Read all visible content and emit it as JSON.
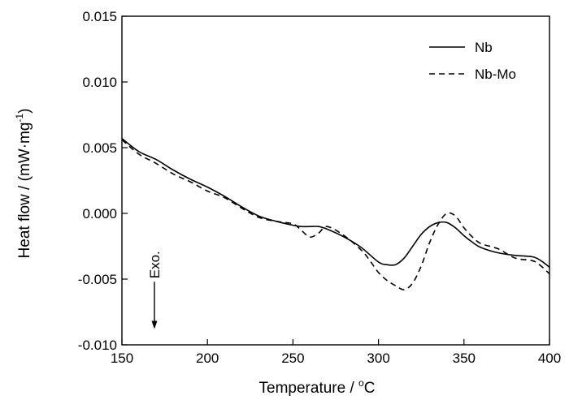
{
  "chart_data": {
    "type": "line",
    "xlabel": "Temperature / °C",
    "xlabel_main": "Temperature / ",
    "xlabel_sup": "o",
    "xlabel_unit": "C",
    "ylabel": "Heat flow / (mW·mg⁻¹)",
    "ylabel_main": "Heat flow / (mW·mg",
    "ylabel_sup": "-1",
    "ylabel_end": ")",
    "xlim": [
      150,
      400
    ],
    "ylim": [
      -0.01,
      0.015
    ],
    "xticks": [
      150,
      200,
      250,
      300,
      350,
      400
    ],
    "xtick_labels": [
      "150",
      "200",
      "250",
      "300",
      "350",
      "400"
    ],
    "yticks": [
      -0.01,
      -0.005,
      0.0,
      0.005,
      0.01,
      0.015
    ],
    "ytick_labels": [
      "-0.010",
      "-0.005",
      "0.000",
      "0.005",
      "0.010",
      "0.015"
    ],
    "grid": false,
    "legend_position": "top-right",
    "annotation": {
      "text": "Exo.",
      "x": 169,
      "arrow_from": -0.0052,
      "arrow_to": -0.0088
    },
    "series": [
      {
        "name": "Nb",
        "style": "solid",
        "color": "#000000",
        "x": [
          150,
          160,
          170,
          180,
          190,
          200,
          210,
          220,
          230,
          240,
          250,
          255,
          260,
          265,
          270,
          280,
          290,
          300,
          305,
          310,
          315,
          320,
          325,
          330,
          335,
          340,
          345,
          350,
          355,
          360,
          370,
          380,
          390,
          395,
          400
        ],
        "y": [
          0.0057,
          0.0047,
          0.0041,
          0.0033,
          0.0026,
          0.002,
          0.0013,
          0.0005,
          -0.0002,
          -0.0006,
          -0.0009,
          -0.001,
          -0.001,
          -0.001,
          -0.0012,
          -0.0018,
          -0.0026,
          -0.0037,
          -0.0039,
          -0.0039,
          -0.0034,
          -0.0025,
          -0.0016,
          -0.001,
          -0.0007,
          -0.0007,
          -0.0011,
          -0.0017,
          -0.0022,
          -0.0026,
          -0.003,
          -0.0032,
          -0.0033,
          -0.0036,
          -0.0041
        ]
      },
      {
        "name": "Nb-Mo",
        "style": "dashed",
        "color": "#000000",
        "x": [
          150,
          160,
          170,
          180,
          190,
          200,
          210,
          220,
          230,
          240,
          250,
          255,
          260,
          265,
          270,
          280,
          290,
          295,
          300,
          305,
          310,
          315,
          320,
          325,
          330,
          335,
          340,
          345,
          350,
          355,
          360,
          370,
          380,
          390,
          395,
          400
        ],
        "y": [
          0.0056,
          0.0045,
          0.0038,
          0.003,
          0.0024,
          0.0017,
          0.0012,
          0.0004,
          -0.0003,
          -0.0006,
          -0.0008,
          -0.0013,
          -0.0018,
          -0.0015,
          -0.001,
          -0.0017,
          -0.0028,
          -0.0036,
          -0.0045,
          -0.0051,
          -0.0055,
          -0.0058,
          -0.0053,
          -0.004,
          -0.0022,
          -0.0008,
          0.0,
          -0.0002,
          -0.0011,
          -0.0018,
          -0.0023,
          -0.0027,
          -0.0034,
          -0.0036,
          -0.004,
          -0.0046
        ]
      }
    ]
  }
}
